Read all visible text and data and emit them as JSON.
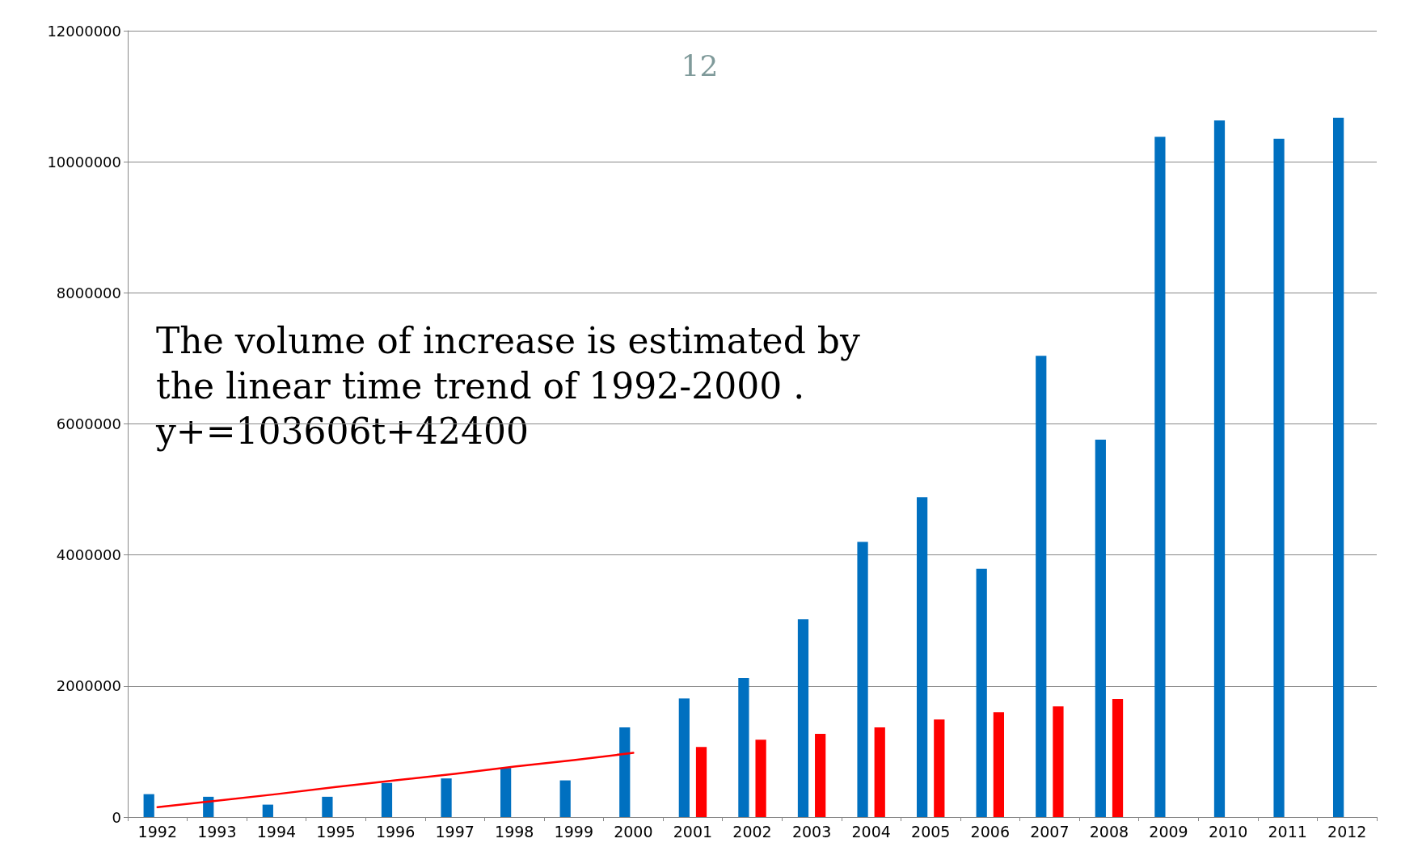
{
  "chart_data": {
    "type": "bar",
    "title": "12",
    "categories": [
      "1992",
      "1993",
      "1994",
      "1995",
      "1996",
      "1997",
      "1998",
      "1999",
      "2000",
      "2001",
      "2002",
      "2003",
      "2004",
      "2005",
      "2006",
      "2007",
      "2008",
      "2009",
      "2010",
      "2011",
      "2012"
    ],
    "series": [
      {
        "color": "#0070c0",
        "values": [
          350000,
          310000,
          190000,
          310000,
          520000,
          590000,
          750000,
          560000,
          1370000,
          1810000,
          2120000,
          3020000,
          4200000,
          4880000,
          3790000,
          7040000,
          5760000,
          10380000,
          10630000,
          10350000,
          10670000
        ]
      },
      {
        "color": "#ff0000",
        "values": [
          0,
          0,
          0,
          0,
          0,
          0,
          0,
          0,
          0,
          1070000,
          1180000,
          1270000,
          1370000,
          1490000,
          1600000,
          1690000,
          1800000,
          0,
          0,
          0,
          0
        ]
      },
      {
        "type": "line",
        "color": "#ff0000",
        "values": [
          150000,
          250000,
          350000,
          460000,
          560000,
          660000,
          770000,
          870000,
          980000,
          null,
          null,
          null,
          null,
          null,
          null,
          null,
          null,
          null,
          null,
          null,
          null
        ]
      }
    ],
    "ylim": [
      0,
      12000000
    ],
    "yticks": [
      0,
      2000000,
      4000000,
      6000000,
      8000000,
      10000000,
      12000000
    ],
    "grid": "y",
    "marker": "none",
    "annotations": [
      "The volume of increase is estimated by the linear time trend of 1992-2000 .",
      "y+=103606t+42400"
    ]
  }
}
